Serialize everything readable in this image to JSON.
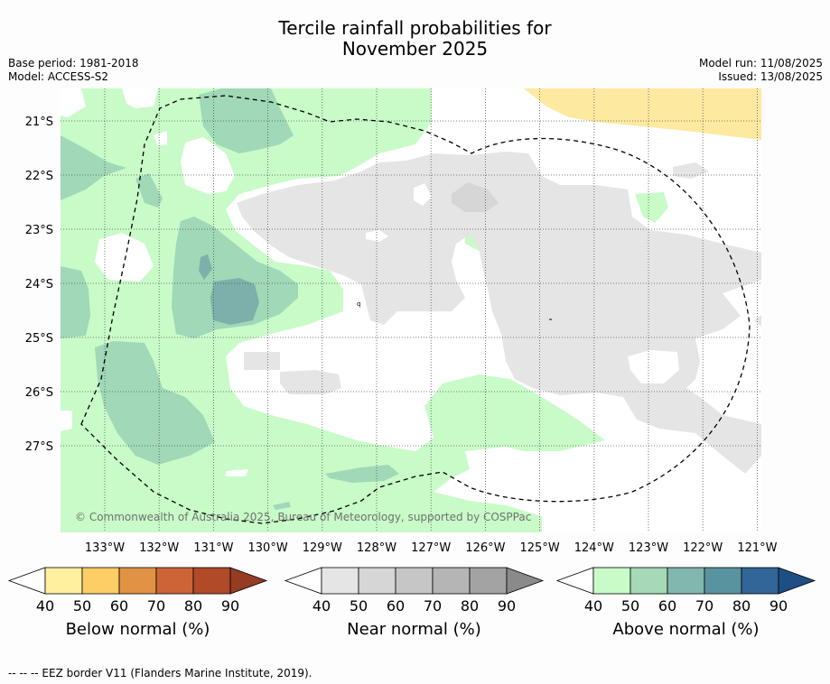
{
  "header": {
    "title_line1": "Tercile rainfall probabilities for",
    "title_line2": "November 2025",
    "base_period": "Base period: 1981-2018",
    "model": "Model: ACCESS-S2",
    "model_run": "Model run: 11/08/2025",
    "issued": "Issued: 13/08/2025"
  },
  "map": {
    "lat_labels": [
      "21°S",
      "22°S",
      "23°S",
      "24°S",
      "25°S",
      "26°S",
      "27°S"
    ],
    "lon_labels": [
      "133°W",
      "132°W",
      "131°W",
      "130°W",
      "129°W",
      "128°W",
      "127°W",
      "126°W",
      "125°W",
      "124°W",
      "123°W",
      "122°W",
      "121°W"
    ],
    "copyright": "© Commonwealth of Australia 2025, Bureau of Meteorology, supported by COSPPac",
    "colors": {
      "above_40": "#c8fbc8",
      "above_50": "#a0d8b8",
      "above_60": "#7db0aa",
      "near_40": "#e5e5e5",
      "near_50": "#d6d6d6",
      "below_40": "#fde9a0",
      "eez": "#000000"
    }
  },
  "colorbars": [
    {
      "name": "Below normal (%)",
      "ticks": [
        "40",
        "50",
        "60",
        "70",
        "80",
        "90"
      ],
      "colors": [
        "#fff0a0",
        "#fdcd66",
        "#e19244",
        "#cd6436",
        "#b04a28",
        "#963c22"
      ]
    },
    {
      "name": "Near normal (%)",
      "ticks": [
        "40",
        "50",
        "60",
        "70",
        "80",
        "90"
      ],
      "colors": [
        "#e5e5e5",
        "#d6d6d6",
        "#c6c6c6",
        "#b5b5b5",
        "#a3a3a3",
        "#8a8a8a"
      ]
    },
    {
      "name": "Above normal (%)",
      "ticks": [
        "40",
        "50",
        "60",
        "70",
        "80",
        "90"
      ],
      "colors": [
        "#c8fbc8",
        "#a5d9b8",
        "#82b7ae",
        "#5a93a0",
        "#326598",
        "#1d4f85"
      ]
    }
  ],
  "footer": "--  --  -- EEZ border V11 (Flanders Marine Institute, 2019)."
}
